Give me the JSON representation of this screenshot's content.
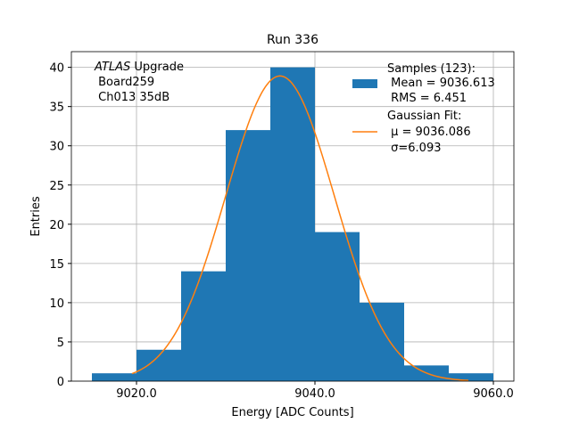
{
  "chart_data": {
    "type": "bar",
    "title": "Run 336",
    "xlabel": "Energy [ADC Counts]",
    "ylabel": "Entries",
    "xlim": [
      9012.7,
      9062.3
    ],
    "ylim": [
      0,
      42
    ],
    "grid": true,
    "x_ticks": [
      "9020.0",
      "9040.0",
      "9060.0"
    ],
    "x_tick_values": [
      9020,
      9040,
      9060
    ],
    "y_ticks": [
      "0",
      "5",
      "10",
      "15",
      "20",
      "25",
      "30",
      "35",
      "40"
    ],
    "y_tick_values": [
      0,
      5,
      10,
      15,
      20,
      25,
      30,
      35,
      40
    ],
    "bin_edges": [
      9015,
      9020,
      9025,
      9030,
      9035,
      9040,
      9045,
      9050,
      9055,
      9060
    ],
    "values": [
      1,
      4,
      14,
      32,
      40,
      19,
      10,
      2,
      1
    ],
    "bar_color": "#1f77b4",
    "fit": {
      "type": "gaussian",
      "mu": 9036.086,
      "sigma": 6.093,
      "peak": 38.9,
      "x_range": [
        9019.5,
        9057.2
      ],
      "color": "#ff7f0e"
    },
    "annotation": {
      "italic": "ATLAS",
      "text1": " Upgrade",
      "text2": " Board259",
      "text3": " Ch013 35dB"
    },
    "legend": {
      "placement": "upper right",
      "samples": [
        "Samples (123):",
        " Mean = 9036.613",
        " RMS = 6.451"
      ],
      "fit": [
        "Gaussian Fit:",
        " μ = 9036.086",
        " σ=6.093"
      ]
    }
  }
}
